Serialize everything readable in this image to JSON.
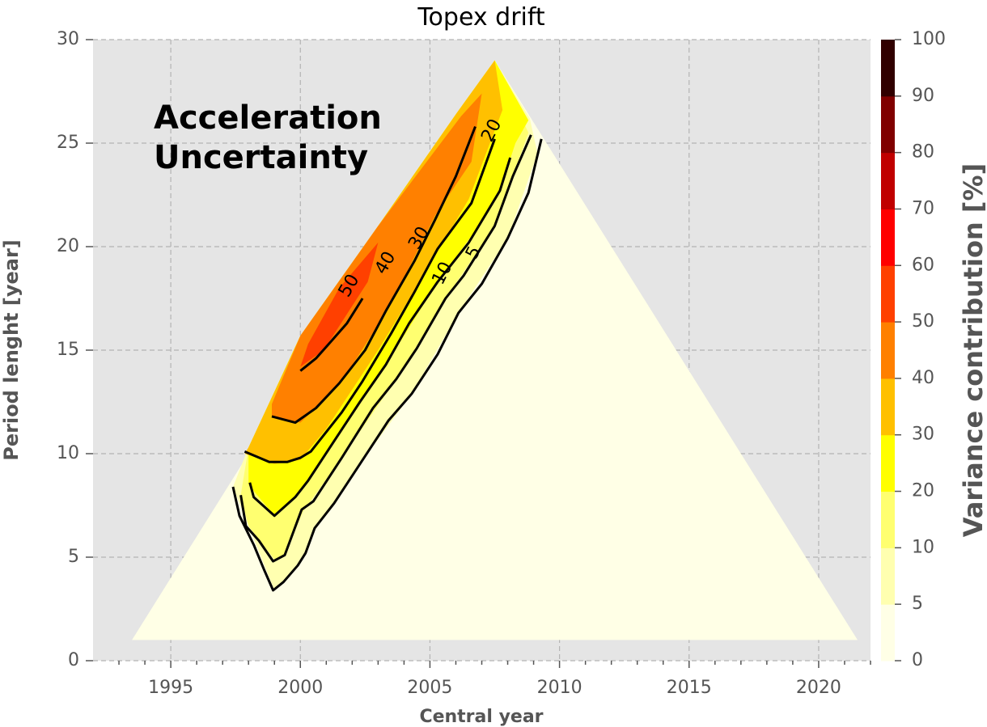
{
  "chart_data": {
    "type": "contour",
    "title": "Topex drift",
    "xlabel": "Central year",
    "ylabel": "Period lenght [year]",
    "xlim": [
      1992,
      2022
    ],
    "ylim": [
      0,
      30
    ],
    "xticks": [
      1995,
      2000,
      2005,
      2010,
      2015,
      2020
    ],
    "yticks": [
      0,
      5,
      10,
      15,
      20,
      25,
      30
    ],
    "grid": true,
    "annotation": "Acceleration\nUncertainty",
    "annotation_lines": [
      "Acceleration",
      "Uncertainty"
    ],
    "domain_triangle": [
      [
        1993.5,
        1
      ],
      [
        2007.5,
        29
      ],
      [
        2021.5,
        1
      ]
    ],
    "colorbar": {
      "label": "Variance contribution [%]",
      "levels": [
        0,
        5,
        10,
        20,
        30,
        40,
        50,
        60,
        70,
        80,
        90,
        100
      ],
      "colors": [
        "#ffffe6",
        "#ffffb0",
        "#ffff70",
        "#ffff00",
        "#ffc000",
        "#ff8000",
        "#ff4000",
        "#ff0000",
        "#c00000",
        "#800000",
        "#300000"
      ]
    },
    "contour_levels": [
      5,
      10,
      20,
      30,
      40,
      50
    ],
    "contour_label_values": [
      "5",
      "10",
      "20",
      "30",
      "40",
      "50"
    ],
    "filled_regions": [
      {
        "level": 5,
        "color": "#ffffb0",
        "polygon": [
          [
            1997.4,
            8.4
          ],
          [
            1999.0,
            3.4
          ],
          [
            1999.4,
            3.8
          ],
          [
            2000.2,
            5.2
          ],
          [
            2000.6,
            6.4
          ],
          [
            2002.3,
            9.5
          ],
          [
            2004.3,
            12.9
          ],
          [
            2006.1,
            16.8
          ],
          [
            2008.0,
            20.4
          ],
          [
            2009.15,
            24.5
          ],
          [
            2008.85,
            26.2
          ],
          [
            2007.5,
            29
          ],
          [
            2006.0,
            26.4
          ],
          [
            2003.0,
            21.0
          ],
          [
            2000.0,
            15.7
          ],
          [
            1998.0,
            10.3
          ]
        ]
      },
      {
        "level": 10,
        "color": "#ffff70",
        "polygon": [
          [
            1997.7,
            8.0
          ],
          [
            1998.0,
            6.5
          ],
          [
            1999.0,
            4.9
          ],
          [
            1999.4,
            5.1
          ],
          [
            2000.1,
            7.2
          ],
          [
            2001.6,
            9.8
          ],
          [
            2003.7,
            13.6
          ],
          [
            2005.6,
            17.5
          ],
          [
            2007.5,
            21.0
          ],
          [
            2008.8,
            25.5
          ],
          [
            2007.5,
            29
          ],
          [
            2006.0,
            26.4
          ],
          [
            2003.0,
            21.0
          ],
          [
            2000.0,
            15.7
          ],
          [
            1998.0,
            10.3
          ]
        ]
      },
      {
        "level": 20,
        "color": "#ffff00",
        "polygon": [
          [
            1998.0,
            8.5
          ],
          [
            1999.0,
            7.0
          ],
          [
            2000.0,
            8.2
          ],
          [
            2001.3,
            10.5
          ],
          [
            2003.3,
            14.3
          ],
          [
            2005.3,
            18.3
          ],
          [
            2007.0,
            21.2
          ],
          [
            2007.7,
            22.7
          ],
          [
            2008.3,
            25.0
          ],
          [
            2008.8,
            26.1
          ],
          [
            2007.5,
            29
          ],
          [
            2006.0,
            26.4
          ],
          [
            2003.0,
            21.0
          ],
          [
            2000.0,
            15.7
          ],
          [
            1998.0,
            10.3
          ]
        ]
      },
      {
        "level": 30,
        "color": "#ffc000",
        "polygon": [
          [
            1997.85,
            10.0
          ],
          [
            1999.0,
            9.5
          ],
          [
            2000.0,
            9.7
          ],
          [
            2001.0,
            11.2
          ],
          [
            2003.0,
            15.0
          ],
          [
            2004.8,
            18.7
          ],
          [
            2006.5,
            22.3
          ],
          [
            2007.8,
            26.6
          ],
          [
            2007.5,
            29
          ],
          [
            2006.0,
            26.4
          ],
          [
            2003.0,
            21.0
          ],
          [
            2000.0,
            15.7
          ],
          [
            1998.0,
            10.3
          ]
        ]
      },
      {
        "level": 40,
        "color": "#ff8000",
        "polygon": [
          [
            1998.9,
            11.8
          ],
          [
            2000.0,
            11.5
          ],
          [
            2001.5,
            13.3
          ],
          [
            2003.4,
            17.0
          ],
          [
            2005.2,
            21.5
          ],
          [
            2006.6,
            24.1
          ],
          [
            2007.0,
            27.4
          ],
          [
            2006.2,
            26.3
          ],
          [
            2003.0,
            21.0
          ],
          [
            2000.0,
            15.7
          ],
          [
            1998.9,
            12.4
          ]
        ]
      },
      {
        "level": 50,
        "color": "#ff4000",
        "polygon": [
          [
            2000.0,
            14.2
          ],
          [
            2000.9,
            15.0
          ],
          [
            2002.6,
            18.3
          ],
          [
            2003.0,
            20.2
          ],
          [
            2001.5,
            18.0
          ],
          [
            2000.3,
            15.3
          ]
        ]
      }
    ],
    "contour_lines": [
      {
        "level": 5,
        "points": [
          [
            1997.4,
            8.4
          ],
          [
            1997.65,
            7.0
          ],
          [
            1998.2,
            5.6
          ],
          [
            1998.6,
            4.4
          ],
          [
            1998.95,
            3.4
          ],
          [
            1999.35,
            3.8
          ],
          [
            1999.9,
            4.6
          ],
          [
            2000.2,
            5.2
          ],
          [
            2000.55,
            6.4
          ],
          [
            2001.3,
            7.6
          ],
          [
            2002.3,
            9.5
          ],
          [
            2003.4,
            11.6
          ],
          [
            2004.3,
            12.9
          ],
          [
            2005.3,
            14.8
          ],
          [
            2006.1,
            16.8
          ],
          [
            2007.0,
            18.2
          ],
          [
            2008.0,
            20.4
          ],
          [
            2008.8,
            22.6
          ],
          [
            2009.3,
            25.2
          ]
        ]
      },
      {
        "level": 10,
        "points": [
          [
            1997.7,
            8.0
          ],
          [
            1997.9,
            6.5
          ],
          [
            1998.4,
            5.8
          ],
          [
            1998.95,
            4.8
          ],
          [
            1999.4,
            5.1
          ],
          [
            2000.05,
            7.3
          ],
          [
            2000.5,
            7.7
          ],
          [
            2001.6,
            9.8
          ],
          [
            2002.8,
            12.2
          ],
          [
            2003.7,
            13.6
          ],
          [
            2004.5,
            15.1
          ],
          [
            2005.6,
            17.5
          ],
          [
            2006.3,
            18.6
          ],
          [
            2007.5,
            21.0
          ],
          [
            2008.2,
            23.4
          ],
          [
            2008.9,
            25.4
          ]
        ]
      },
      {
        "level": 20,
        "points": [
          [
            1998.05,
            8.6
          ],
          [
            1998.2,
            7.9
          ],
          [
            1999.0,
            7.0
          ],
          [
            1999.8,
            7.9
          ],
          [
            2000.3,
            8.7
          ],
          [
            2001.3,
            10.6
          ],
          [
            2002.3,
            12.5
          ],
          [
            2003.3,
            14.3
          ],
          [
            2004.2,
            16.3
          ],
          [
            2005.3,
            18.3
          ],
          [
            2006.5,
            20.2
          ],
          [
            2007.7,
            22.7
          ],
          [
            2008.1,
            24.3
          ]
        ]
      },
      {
        "level": 30,
        "points": [
          [
            1997.85,
            10.1
          ],
          [
            1998.8,
            9.6
          ],
          [
            1999.5,
            9.6
          ],
          [
            2000.0,
            9.8
          ],
          [
            2000.4,
            10.1
          ],
          [
            2001.6,
            12.0
          ],
          [
            2002.4,
            13.5
          ],
          [
            2003.5,
            15.8
          ],
          [
            2004.4,
            17.8
          ],
          [
            2005.3,
            19.9
          ],
          [
            2006.6,
            22.1
          ],
          [
            2007.5,
            25.2
          ]
        ]
      },
      {
        "level": 40,
        "points": [
          [
            1998.9,
            11.8
          ],
          [
            1999.8,
            11.5
          ],
          [
            2000.6,
            12.2
          ],
          [
            2001.5,
            13.4
          ],
          [
            2002.5,
            15.0
          ],
          [
            2003.3,
            16.9
          ],
          [
            2004.4,
            19.3
          ],
          [
            2005.2,
            21.3
          ],
          [
            2006.0,
            23.4
          ],
          [
            2006.75,
            25.8
          ]
        ]
      },
      {
        "level": 50,
        "points": [
          [
            2000.0,
            14.0
          ],
          [
            2000.6,
            14.6
          ],
          [
            2001.1,
            15.3
          ],
          [
            2001.8,
            16.3
          ],
          [
            2002.4,
            17.5
          ]
        ]
      }
    ],
    "contour_label_positions": [
      {
        "text": "5",
        "x": 2006.7,
        "y": 19.7,
        "angle": -63
      },
      {
        "text": "10",
        "x": 2005.5,
        "y": 18.7,
        "angle": -63
      },
      {
        "text": "20",
        "x": 2007.4,
        "y": 25.6,
        "angle": -63
      },
      {
        "text": "30",
        "x": 2004.6,
        "y": 20.4,
        "angle": -60
      },
      {
        "text": "40",
        "x": 2003.3,
        "y": 19.2,
        "angle": -60
      },
      {
        "text": "50",
        "x": 2001.9,
        "y": 18.1,
        "angle": -60
      }
    ]
  }
}
